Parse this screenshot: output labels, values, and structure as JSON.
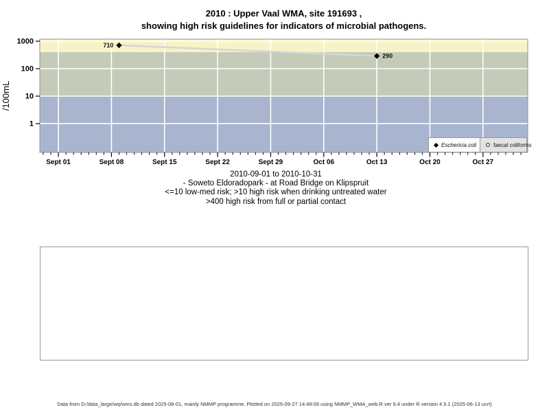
{
  "title": {
    "line1": "2010 : Upper Vaal WMA, site 191693 ,",
    "line2": "showing high risk guidelines for indicators of microbial pathogens."
  },
  "caption": {
    "line1": "2010-09-01 to 2010-10-31",
    "line2": "- Soweto Eldoradopark - at Road Bridge on Klipspruit",
    "line3": "<=10 low-med risk; >10 high risk when drinking untreated water",
    "line4": ">400 high risk from full or partial contact"
  },
  "footer": {
    "text": "Data from D:/data_large/wq/wms.db dated 2025-08-01, mainly NMMP programme. Plotted on 2025-09-27 14:49:09 using NMMP_WMA_web.R ver 9.4 under R version 4.5.1 (2025-06-13 ucrt)"
  },
  "chart_data": {
    "type": "line",
    "title": "2010 : Upper Vaal WMA, site 191693 , showing high risk guidelines for indicators of microbial pathogens.",
    "y_axis": {
      "label": "/100mL",
      "scale": "log10",
      "ticks": [
        1000,
        100,
        10,
        1
      ],
      "tick_labels": [
        "1000",
        "100",
        "10",
        "1"
      ],
      "range": [
        0.089,
        1189
      ]
    },
    "x_axis": {
      "origin": "2010-09-01",
      "end": "2010-10-31",
      "major_ticks": [
        "2010-09-01",
        "2010-09-08",
        "2010-09-15",
        "2010-09-22",
        "2010-09-29",
        "2010-10-06",
        "2010-10-13",
        "2010-10-20",
        "2010-10-27"
      ],
      "major_labels": [
        "Sept 01",
        "Sept 08",
        "Sept 15",
        "Sept 22",
        "Sept 29",
        "Oct 06",
        "Oct 13",
        "Oct 20",
        "Oct 27"
      ],
      "minor_tick_interval_days": 1
    },
    "grid": "on",
    "grid_color": "#ffffff",
    "frame_color": "#909090",
    "bands": [
      {
        "from": 400,
        "to": 1189,
        "color": "#f8f3c6"
      },
      {
        "from": 10,
        "to": 400,
        "color": "#c4cbb8"
      },
      {
        "from": 0.089,
        "to": 10,
        "color": "#a9b5ce"
      }
    ],
    "series": [
      {
        "name": "Eschericia coli",
        "marker": "filled-diamond",
        "marker_color": "#000000",
        "line_color": "#d6d6d6",
        "points": [
          {
            "date": "2010-09-09",
            "value": 710,
            "label": "710",
            "label_side": "left"
          },
          {
            "date": "2010-10-13",
            "value": 290,
            "label": "290",
            "label_side": "right"
          }
        ]
      },
      {
        "name": "faecal coliforms",
        "marker": "open-circle",
        "marker_color": "#000000",
        "line_color": "#d6d6d6",
        "points": []
      }
    ],
    "legend": {
      "position": "bottom-right",
      "items": [
        {
          "marker": "filled-diamond",
          "label": "Eschericia coli",
          "italic": true
        },
        {
          "marker": "open-circle",
          "label": "faecal coliforms",
          "italic": false
        }
      ]
    }
  }
}
